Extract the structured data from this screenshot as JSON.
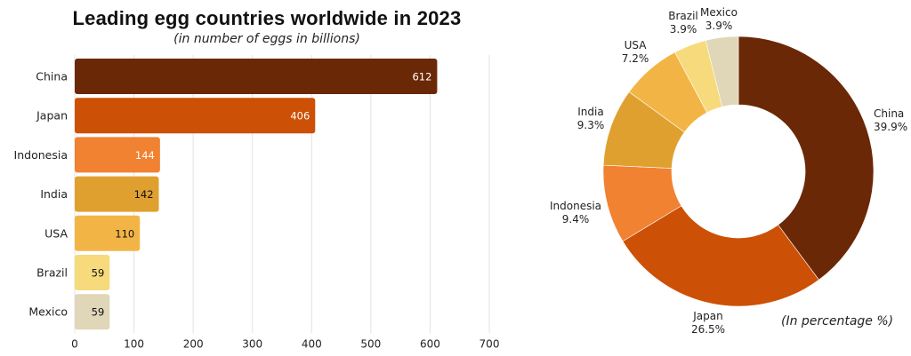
{
  "title": "Leading egg countries worldwide in 2023",
  "subtitle": "(in number of eggs in billions)",
  "chart_data": [
    {
      "type": "bar",
      "orientation": "horizontal",
      "title": "Leading egg countries worldwide in 2023",
      "subtitle": "(in number of eggs in billions)",
      "categories": [
        "China",
        "Japan",
        "Indonesia",
        "India",
        "USA",
        "Brazil",
        "Mexico"
      ],
      "values": [
        612,
        406,
        144,
        142,
        110,
        59,
        59
      ],
      "value_labels": [
        "612",
        "406",
        "144",
        "142",
        "110",
        "59",
        "59"
      ],
      "colors": [
        "#6a2806",
        "#cc5005",
        "#f08232",
        "#e0a030",
        "#f2b545",
        "#f7da7b",
        "#e0d6b8"
      ],
      "label_colors": [
        "#ffffff",
        "#ffffff",
        "#ffffff",
        "#111111",
        "#111111",
        "#111111",
        "#111111"
      ],
      "xlim": [
        0,
        700
      ],
      "xticks": [
        0,
        100,
        200,
        300,
        400,
        500,
        600,
        700
      ],
      "xtick_labels": [
        "0",
        "100",
        "200",
        "300",
        "400",
        "500",
        "600",
        "700"
      ],
      "grid": true,
      "xlabel": "",
      "ylabel": ""
    },
    {
      "type": "pie",
      "donut": true,
      "title": "",
      "note": "(In percentage %)",
      "categories": [
        "China",
        "Japan",
        "Indonesia",
        "India",
        "USA",
        "Brazil",
        "Mexico"
      ],
      "values": [
        39.9,
        26.5,
        9.4,
        9.3,
        7.2,
        3.9,
        3.9
      ],
      "value_labels": [
        "39.9%",
        "26.5%",
        "9.4%",
        "9.3%",
        "7.2%",
        "3.9%",
        "3.9%"
      ],
      "colors": [
        "#6a2806",
        "#cc5005",
        "#f08232",
        "#e0a030",
        "#f2b545",
        "#f7da7b",
        "#e0d6b8"
      ],
      "start": "top",
      "direction": "clockwise"
    }
  ]
}
